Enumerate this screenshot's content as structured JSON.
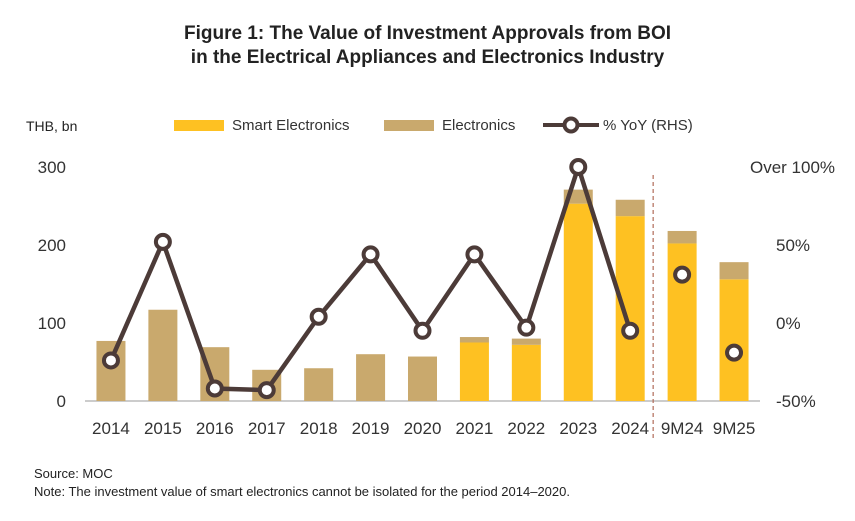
{
  "chart_data": {
    "type": "bar",
    "title_line1": "Figure 1: The Value of Investment Approvals from BOI",
    "title_line2": "in the Electrical Appliances and Electronics Industry",
    "ylabel": "THB, bn",
    "y2_top_label": "Over 100%",
    "categories": [
      "2014",
      "2015",
      "2016",
      "2017",
      "2018",
      "2019",
      "2020",
      "2021",
      "2022",
      "2023",
      "2024",
      "9M24",
      "9M25"
    ],
    "ylim": [
      0,
      300
    ],
    "yticks": [
      0,
      100,
      200,
      300
    ],
    "y2lim": [
      -50,
      100
    ],
    "y2ticks": [
      "-50%",
      "0%",
      "50%"
    ],
    "series": [
      {
        "name": "Smart Electronics",
        "kind": "bar-stack",
        "color": "#fec122",
        "values": [
          0,
          0,
          0,
          0,
          0,
          0,
          0,
          75,
          72,
          253,
          237,
          202,
          156
        ]
      },
      {
        "name": "Electronics",
        "kind": "bar-stack",
        "color": "#c9a96d",
        "values": [
          77,
          117,
          69,
          40,
          42,
          60,
          57,
          7,
          8,
          18,
          21,
          16,
          22
        ]
      },
      {
        "name": "% YoY (RHS)",
        "kind": "line",
        "color": "#4c3b38",
        "values": [
          -24,
          52,
          -42,
          -43,
          4,
          44,
          -5,
          44,
          -3,
          100,
          -5,
          31,
          -19
        ]
      }
    ],
    "annotations": {
      "source": "Source: MOC",
      "note": "Note: The investment value of smart electronics cannot be isolated for the period 2014–2020."
    }
  }
}
